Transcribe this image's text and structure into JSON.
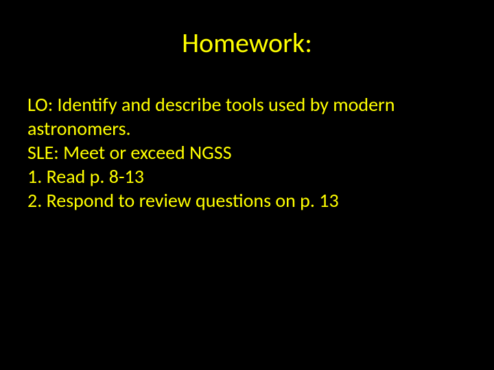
{
  "background_color": "#000000",
  "text_color": "#ffff00",
  "title_fontsize": 40,
  "body_fontsize": 28,
  "font_family": "Calibri",
  "title": "Homework:",
  "lines": [
    "LO: Identify and describe tools used by modern astronomers.",
    "SLE: Meet or exceed NGSS",
    "1.  Read p. 8-13",
    "2.  Respond to review questions on p. 13"
  ]
}
